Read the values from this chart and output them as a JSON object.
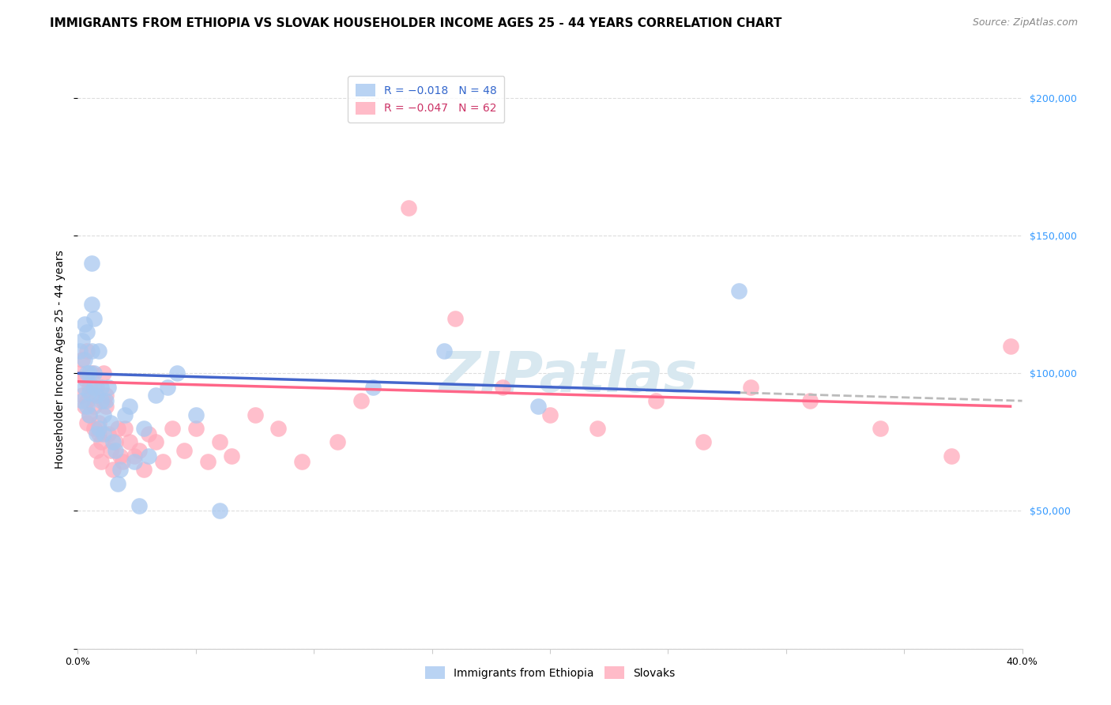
{
  "title": "IMMIGRANTS FROM ETHIOPIA VS SLOVAK HOUSEHOLDER INCOME AGES 25 - 44 YEARS CORRELATION CHART",
  "source": "Source: ZipAtlas.com",
  "ylabel": "Householder Income Ages 25 - 44 years",
  "xlim": [
    0.0,
    0.4
  ],
  "ylim": [
    0,
    210000
  ],
  "yticks": [
    0,
    50000,
    100000,
    150000,
    200000
  ],
  "ytick_labels": [
    "",
    "$50,000",
    "$100,000",
    "$150,000",
    "$200,000"
  ],
  "xticks": [
    0.0,
    0.05,
    0.1,
    0.15,
    0.2,
    0.25,
    0.3,
    0.35,
    0.4
  ],
  "ethiopia_color": "#a8c8f0",
  "slovak_color": "#ffaabb",
  "ethiopia_line_color": "#4466cc",
  "slovak_line_color": "#ff6688",
  "trend_dash_color": "#bbbbbb",
  "right_ytick_color": "#3399ff",
  "background_color": "#ffffff",
  "grid_color": "#dddddd",
  "watermark_color": "#d8e8f0",
  "ethiopia_x": [
    0.001,
    0.002,
    0.002,
    0.003,
    0.003,
    0.003,
    0.004,
    0.004,
    0.004,
    0.005,
    0.005,
    0.005,
    0.006,
    0.006,
    0.006,
    0.007,
    0.007,
    0.007,
    0.008,
    0.008,
    0.009,
    0.009,
    0.01,
    0.01,
    0.011,
    0.011,
    0.012,
    0.013,
    0.014,
    0.015,
    0.016,
    0.017,
    0.018,
    0.02,
    0.022,
    0.024,
    0.026,
    0.028,
    0.03,
    0.033,
    0.038,
    0.042,
    0.05,
    0.06,
    0.125,
    0.155,
    0.195,
    0.28
  ],
  "ethiopia_y": [
    108000,
    112000,
    90000,
    95000,
    105000,
    118000,
    88000,
    100000,
    115000,
    93000,
    85000,
    100000,
    140000,
    125000,
    108000,
    120000,
    95000,
    100000,
    78000,
    92000,
    80000,
    108000,
    90000,
    95000,
    78000,
    85000,
    90000,
    95000,
    82000,
    75000,
    72000,
    60000,
    65000,
    85000,
    88000,
    68000,
    52000,
    80000,
    70000,
    92000,
    95000,
    100000,
    85000,
    50000,
    95000,
    108000,
    88000,
    130000
  ],
  "slovak_x": [
    0.001,
    0.002,
    0.002,
    0.003,
    0.003,
    0.004,
    0.004,
    0.004,
    0.005,
    0.005,
    0.006,
    0.006,
    0.007,
    0.007,
    0.008,
    0.008,
    0.009,
    0.009,
    0.01,
    0.01,
    0.011,
    0.011,
    0.012,
    0.012,
    0.013,
    0.014,
    0.015,
    0.016,
    0.017,
    0.018,
    0.019,
    0.02,
    0.022,
    0.024,
    0.026,
    0.028,
    0.03,
    0.033,
    0.036,
    0.04,
    0.045,
    0.05,
    0.055,
    0.06,
    0.065,
    0.075,
    0.085,
    0.095,
    0.11,
    0.12,
    0.14,
    0.16,
    0.18,
    0.2,
    0.22,
    0.245,
    0.265,
    0.285,
    0.31,
    0.34,
    0.37,
    0.395
  ],
  "slovak_y": [
    100000,
    105000,
    92000,
    98000,
    88000,
    82000,
    90000,
    108000,
    95000,
    85000,
    100000,
    92000,
    88000,
    80000,
    95000,
    72000,
    78000,
    82000,
    68000,
    75000,
    90000,
    100000,
    88000,
    92000,
    78000,
    72000,
    65000,
    75000,
    80000,
    70000,
    68000,
    80000,
    75000,
    70000,
    72000,
    65000,
    78000,
    75000,
    68000,
    80000,
    72000,
    80000,
    68000,
    75000,
    70000,
    85000,
    80000,
    68000,
    75000,
    90000,
    160000,
    120000,
    95000,
    85000,
    80000,
    90000,
    75000,
    95000,
    90000,
    80000,
    70000,
    110000
  ],
  "watermark": "ZIPatlas",
  "title_fontsize": 11,
  "axis_label_fontsize": 10,
  "tick_fontsize": 9,
  "legend_fontsize": 10,
  "source_fontsize": 9
}
